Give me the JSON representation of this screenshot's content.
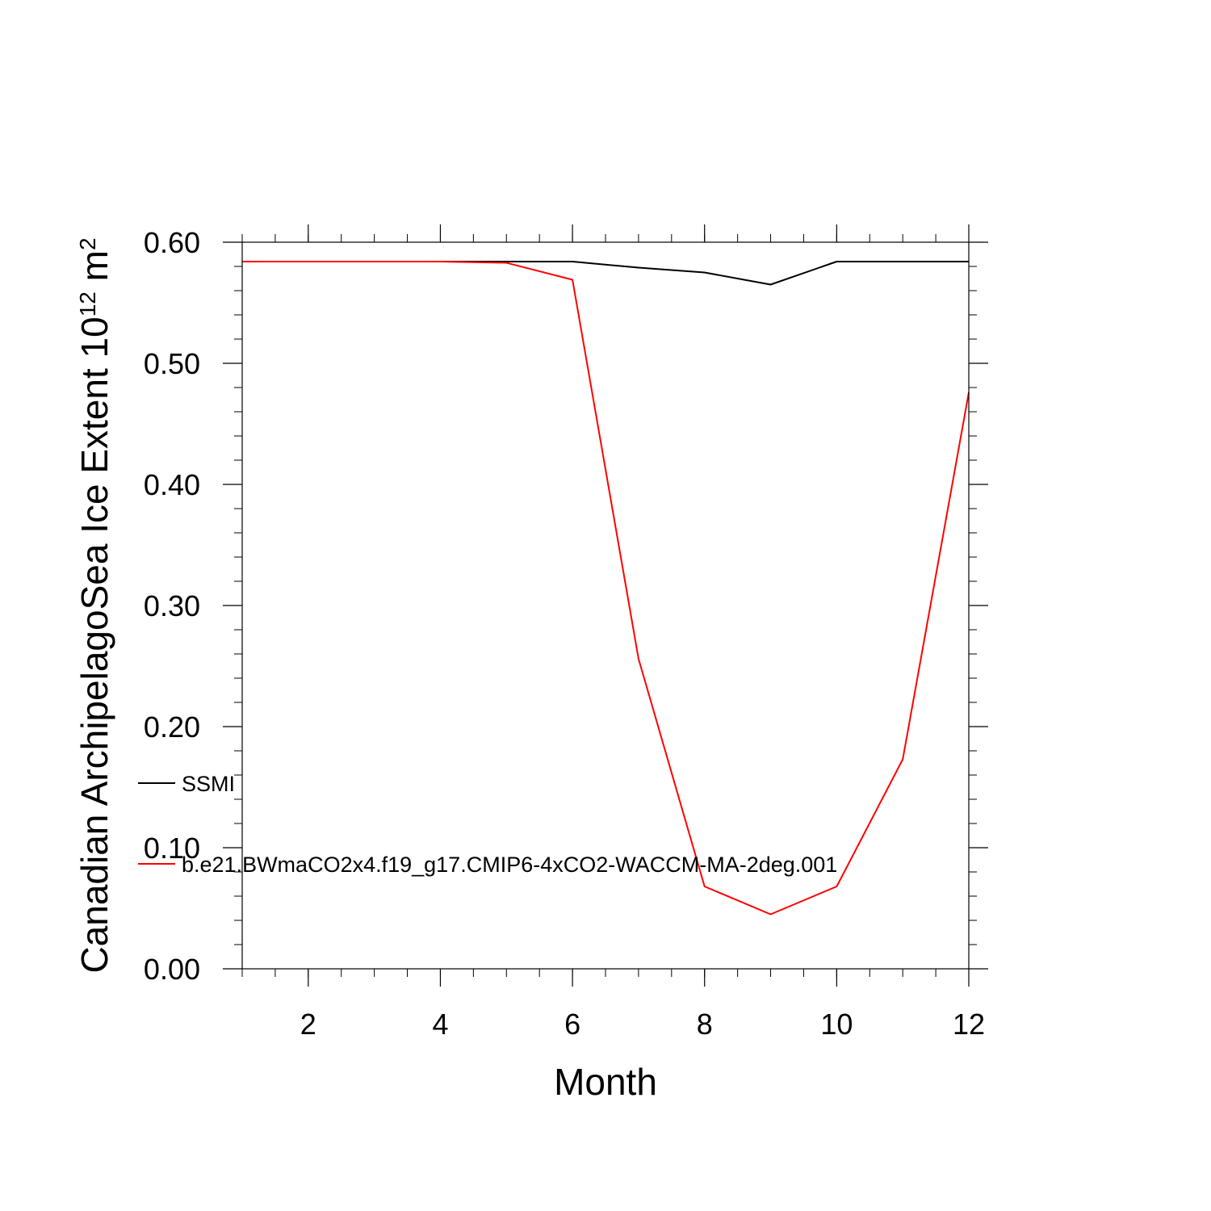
{
  "chart_data": {
    "type": "line",
    "xlabel": "Month",
    "ylabel_main": "Canadian ArchipelagoSea Ice Extent 10",
    "ylabel_sup1": "12",
    "ylabel_mid": " m",
    "ylabel_sup2": "2",
    "xlim": [
      1,
      12
    ],
    "ylim": [
      0,
      0.6
    ],
    "x_ticks": [
      2,
      4,
      6,
      8,
      10,
      12
    ],
    "x_tick_labels": [
      "2",
      "4",
      "6",
      "8",
      "10",
      "12"
    ],
    "y_ticks": [
      0,
      0.1,
      0.2,
      0.3,
      0.4,
      0.5,
      0.6
    ],
    "y_tick_labels": [
      "0.00",
      "0.10",
      "0.20",
      "0.30",
      "0.40",
      "0.50",
      "0.60"
    ],
    "x": [
      1,
      2,
      3,
      4,
      5,
      6,
      7,
      8,
      9,
      10,
      11,
      12
    ],
    "series": [
      {
        "name": "SSMI",
        "color": "#000000",
        "values": [
          0.584,
          0.584,
          0.584,
          0.584,
          0.584,
          0.584,
          0.579,
          0.575,
          0.565,
          0.584,
          0.584,
          0.584
        ]
      },
      {
        "name": "b.e21.BWmaCO2x4.f19_g17.CMIP6-4xCO2-WACCM-MA-2deg.001",
        "color": "#ff0000",
        "values": [
          0.584,
          0.584,
          0.584,
          0.584,
          0.583,
          0.569,
          0.256,
          0.068,
          0.045,
          0.068,
          0.173,
          0.476
        ]
      }
    ],
    "legend_position": "lower-left"
  }
}
